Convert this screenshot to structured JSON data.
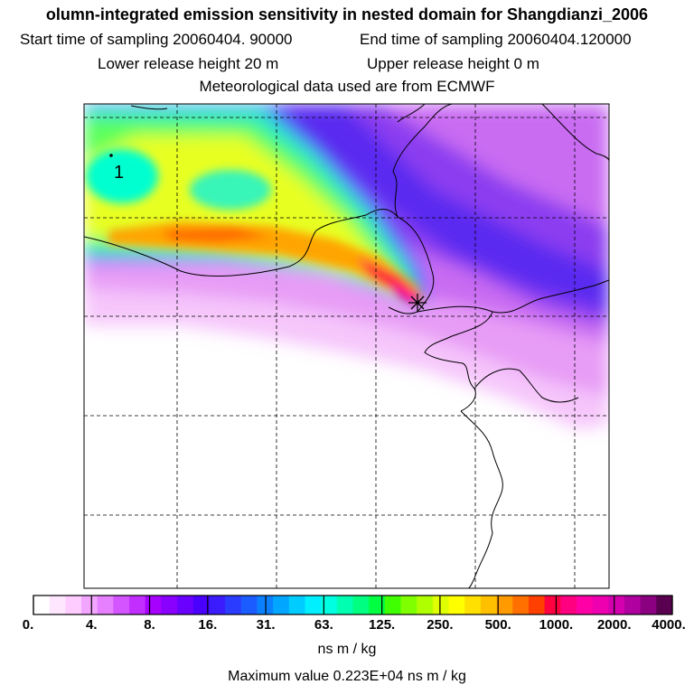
{
  "header": {
    "title": "olumn-integrated emission sensitivity in nested domain for Shangdianzi_2006",
    "start_label": "Start time of sampling 20060404. 90000",
    "end_label": "End time of sampling 20060404.120000",
    "lower_label": "Lower release height   20 m",
    "upper_label": "Upper release height    0 m",
    "met_label": "Meteorological data used are from ECMWF"
  },
  "map": {
    "marker_label": "1",
    "receptor_symbol": "star"
  },
  "colorbar": {
    "ticks": [
      "0.",
      "4.",
      "8.",
      "16.",
      "31.",
      "63.",
      "125.",
      "250.",
      "500.",
      "1000.",
      "2000.",
      "4000."
    ],
    "colors": [
      "#ffffff",
      "#ffe6ff",
      "#ffccff",
      "#f2a6ff",
      "#e680ff",
      "#d455ff",
      "#c22eff",
      "#a600ff",
      "#8a00ff",
      "#6a00ff",
      "#4a00ff",
      "#3a1cff",
      "#2a3cff",
      "#1a5cff",
      "#0a80ff",
      "#00a6ff",
      "#00ccff",
      "#00f0ff",
      "#00ffe0",
      "#00ffb0",
      "#00ff80",
      "#00ff40",
      "#40ff00",
      "#80ff00",
      "#b0ff00",
      "#e0ff00",
      "#ffff00",
      "#ffe000",
      "#ffc000",
      "#ff9a00",
      "#ff7000",
      "#ff4000",
      "#ff0040",
      "#ff0080",
      "#ff00a6",
      "#ee00b0",
      "#d400b0",
      "#b000a0",
      "#8a0080",
      "#5a0050"
    ],
    "units": "ns m / kg",
    "max_value": "Maximum value  0.223E+04 ns m / kg"
  }
}
